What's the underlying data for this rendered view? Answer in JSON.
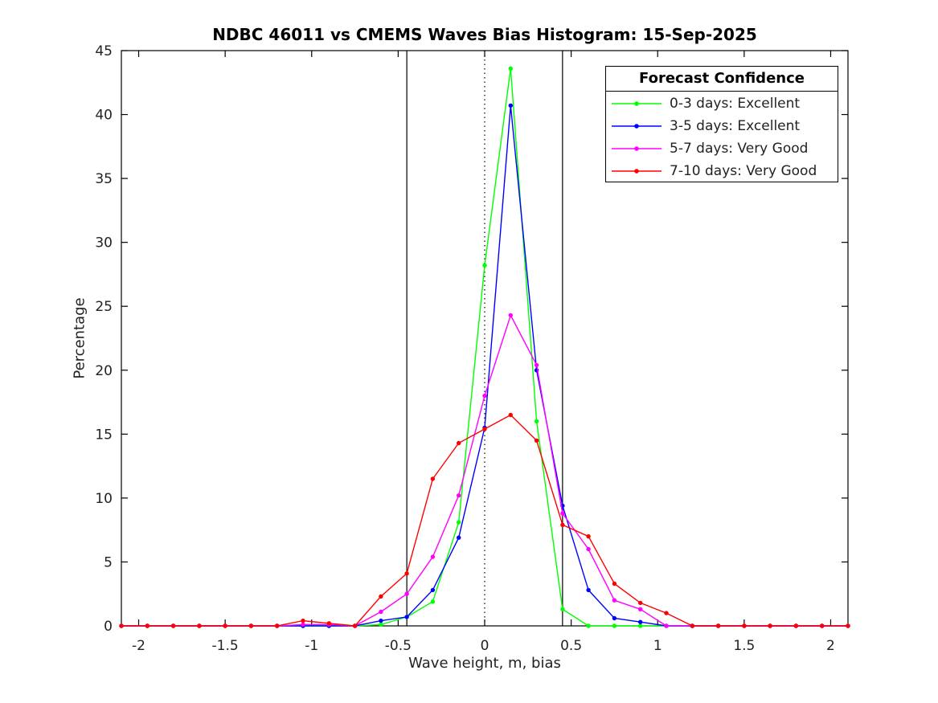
{
  "figure": {
    "background": "#ffffff"
  },
  "chart_data": {
    "type": "line",
    "title": "NDBC 46011 vs CMEMS Waves Bias Histogram: 15-Sep-2025",
    "xlabel": "Wave height, m, bias",
    "ylabel": "Percentage",
    "xlim": [
      -2.1,
      2.1
    ],
    "ylim": [
      0,
      45
    ],
    "xticks": [
      -2,
      -1.5,
      -1,
      -0.5,
      0,
      0.5,
      1,
      1.5,
      2
    ],
    "yticks": [
      0,
      5,
      10,
      15,
      20,
      25,
      30,
      35,
      40,
      45
    ],
    "grid": false,
    "box": true,
    "axis_color": "#000000",
    "reference_lines": [
      {
        "x": -0.45,
        "style": "solid",
        "color": "#000000"
      },
      {
        "x": 0,
        "style": "dotted",
        "color": "#000000"
      },
      {
        "x": 0.45,
        "style": "solid",
        "color": "#000000"
      }
    ],
    "x": [
      -2.1,
      -1.95,
      -1.8,
      -1.65,
      -1.5,
      -1.35,
      -1.2,
      -1.05,
      -0.9,
      -0.75,
      -0.6,
      -0.45,
      -0.3,
      -0.15,
      0,
      0.15,
      0.3,
      0.45,
      0.6,
      0.75,
      0.9,
      1.05,
      1.2,
      1.35,
      1.5,
      1.65,
      1.8,
      1.95,
      2.1
    ],
    "series": [
      {
        "name": "0-3 days: Excellent",
        "color": "#00ff00",
        "values": [
          0,
          0,
          0,
          0,
          0,
          0,
          0,
          0,
          0,
          0,
          0.1,
          0.7,
          1.9,
          8.1,
          28.2,
          43.6,
          16.0,
          1.3,
          0,
          0,
          0,
          0,
          0,
          0,
          0,
          0,
          0,
          0,
          0
        ]
      },
      {
        "name": "3-5 days: Excellent",
        "color": "#0000ff",
        "values": [
          0,
          0,
          0,
          0,
          0,
          0,
          0,
          0,
          0,
          0,
          0.4,
          0.7,
          2.8,
          6.9,
          15.5,
          40.7,
          20.0,
          9.4,
          2.8,
          0.6,
          0.3,
          0,
          0,
          0,
          0,
          0,
          0,
          0,
          0
        ]
      },
      {
        "name": "5-7 days: Very Good",
        "color": "#ff00ff",
        "values": [
          0,
          0,
          0,
          0,
          0,
          0,
          0,
          0.1,
          0.1,
          0,
          1.1,
          2.5,
          5.4,
          10.2,
          18.0,
          24.3,
          20.4,
          8.8,
          6.0,
          2.0,
          1.3,
          0,
          0,
          0,
          0,
          0,
          0,
          0,
          0
        ]
      },
      {
        "name": "7-10 days: Very Good",
        "color": "#ff0000",
        "values": [
          0,
          0,
          0,
          0,
          0,
          0,
          0,
          0.4,
          0.2,
          0,
          2.3,
          4.1,
          11.5,
          14.3,
          15.4,
          16.5,
          14.5,
          7.9,
          7.0,
          3.3,
          1.8,
          1.0,
          0,
          0,
          0,
          0,
          0,
          0,
          0
        ]
      }
    ],
    "legend": {
      "title": "Forecast Confidence",
      "position": "top-right"
    }
  }
}
